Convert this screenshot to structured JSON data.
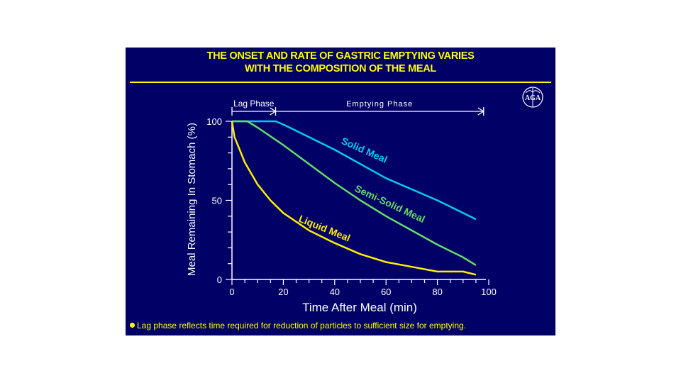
{
  "slide": {
    "title_line1": "THE ONSET AND RATE OF GASTRIC EMPTYING VARIES",
    "title_line2": "WITH THE COMPOSITION OF THE MEAL",
    "logo_text": "AGA",
    "footnote": "Lag phase reflects time required for reduction of particles to sufficient size for emptying."
  },
  "colors": {
    "background": "#000066",
    "title": "#ffff00",
    "axis": "#ffffff",
    "solid": "#00ccee",
    "semi": "#66dd66",
    "liquid": "#ffee00"
  },
  "icons": {
    "logo": "aga-caduceus-logo",
    "bullet": "yellow-bullet-dot"
  },
  "chart_data": {
    "type": "line",
    "xlabel": "Time After Meal (min)",
    "ylabel": "Meal Remaining In Stomach (%)",
    "xlim": [
      0,
      100
    ],
    "ylim": [
      0,
      100
    ],
    "xticks": [
      0,
      20,
      40,
      60,
      80,
      100
    ],
    "yticks": [
      0,
      50,
      100
    ],
    "grid": false,
    "phases": [
      {
        "label": "Lag Phase",
        "start": 0,
        "end": 17
      },
      {
        "label": "Emptying Phase",
        "start": 17,
        "end": 98
      }
    ],
    "series": [
      {
        "name": "Solid Meal",
        "color_key": "solid",
        "x": [
          0,
          17,
          20,
          30,
          40,
          50,
          60,
          70,
          80,
          90,
          95
        ],
        "y": [
          100,
          100,
          98,
          90,
          82,
          73,
          64,
          57,
          50,
          42,
          38
        ]
      },
      {
        "name": "Semi-Solid Meal",
        "color_key": "semi",
        "x": [
          0,
          6,
          10,
          20,
          30,
          40,
          50,
          60,
          70,
          80,
          90,
          95
        ],
        "y": [
          100,
          100,
          96,
          85,
          73,
          61,
          50,
          40,
          31,
          22,
          14,
          9
        ]
      },
      {
        "name": "Liquid Meal",
        "color_key": "liquid",
        "x": [
          0,
          1,
          3,
          5,
          10,
          15,
          20,
          30,
          40,
          50,
          60,
          70,
          80,
          90,
          95
        ],
        "y": [
          100,
          90,
          82,
          74,
          60,
          50,
          42,
          31,
          23,
          16,
          11,
          8,
          5,
          5,
          3
        ]
      }
    ]
  }
}
